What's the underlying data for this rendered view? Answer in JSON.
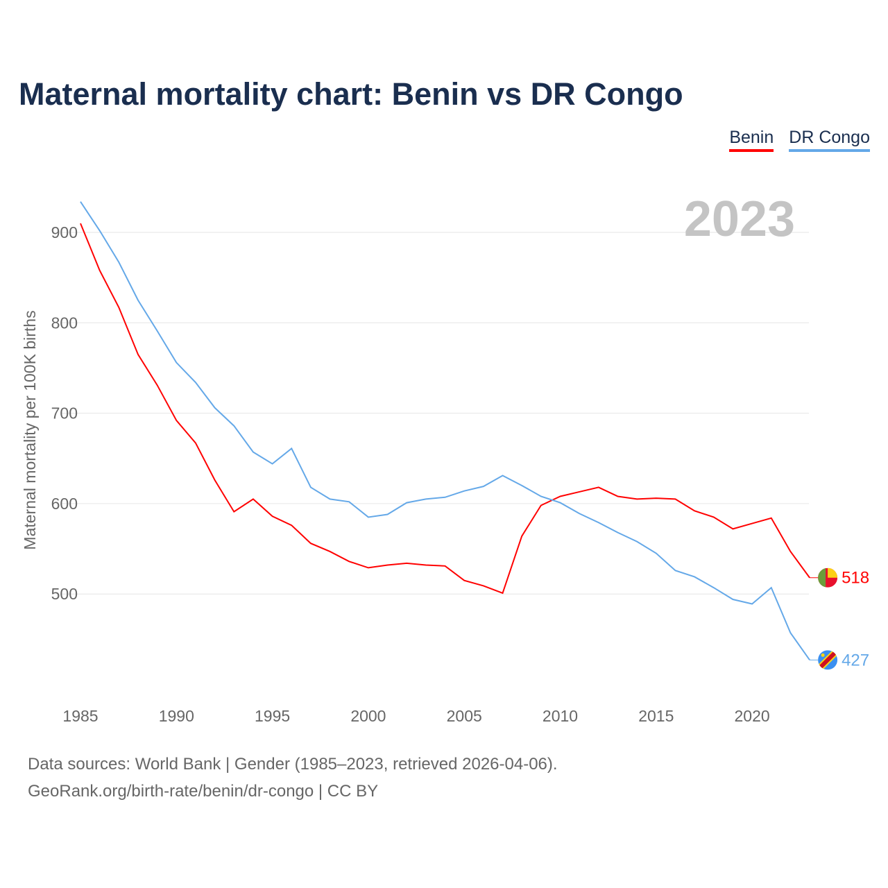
{
  "chart_data": {
    "type": "line",
    "title": "Maternal mortality chart: Benin vs DR Congo",
    "ylabel": "Maternal mortality per 100K births",
    "xlabel": "",
    "year_label": "2023",
    "ylim": [
      400,
      950
    ],
    "xlim": [
      1985,
      2023
    ],
    "yticks": [
      500,
      600,
      700,
      800,
      900
    ],
    "xticks": [
      1985,
      1990,
      1995,
      2000,
      2005,
      2010,
      2015,
      2020
    ],
    "grid": true,
    "legend_position": "top-right",
    "x": [
      1985,
      1986,
      1987,
      1988,
      1989,
      1990,
      1991,
      1992,
      1993,
      1994,
      1995,
      1996,
      1997,
      1998,
      1999,
      2000,
      2001,
      2002,
      2003,
      2004,
      2005,
      2006,
      2007,
      2008,
      2009,
      2010,
      2011,
      2012,
      2013,
      2014,
      2015,
      2016,
      2017,
      2018,
      2019,
      2020,
      2021,
      2022,
      2023
    ],
    "series": [
      {
        "name": "Benin",
        "color": "#ff0000",
        "end_label": "518",
        "values": [
          910,
          858,
          817,
          765,
          731,
          692,
          667,
          626,
          591,
          605,
          586,
          576,
          556,
          547,
          536,
          529,
          532,
          534,
          532,
          531,
          515,
          509,
          501,
          564,
          598,
          608,
          613,
          618,
          608,
          605,
          606,
          605,
          592,
          585,
          572,
          578,
          584,
          547,
          518
        ]
      },
      {
        "name": "DR Congo",
        "color": "#64a8e8",
        "end_label": "427",
        "values": [
          934,
          902,
          867,
          825,
          791,
          756,
          734,
          706,
          686,
          657,
          644,
          661,
          618,
          605,
          602,
          585,
          588,
          601,
          605,
          607,
          614,
          619,
          631,
          620,
          608,
          601,
          589,
          579,
          568,
          558,
          545,
          526,
          519,
          507,
          494,
          489,
          507,
          457,
          427
        ]
      }
    ]
  },
  "footer": {
    "line1": "Data sources: World Bank | Gender (1985–2023, retrieved 2026-04-06).",
    "line2": "GeoRank.org/birth-rate/benin/dr-congo | CC BY"
  }
}
